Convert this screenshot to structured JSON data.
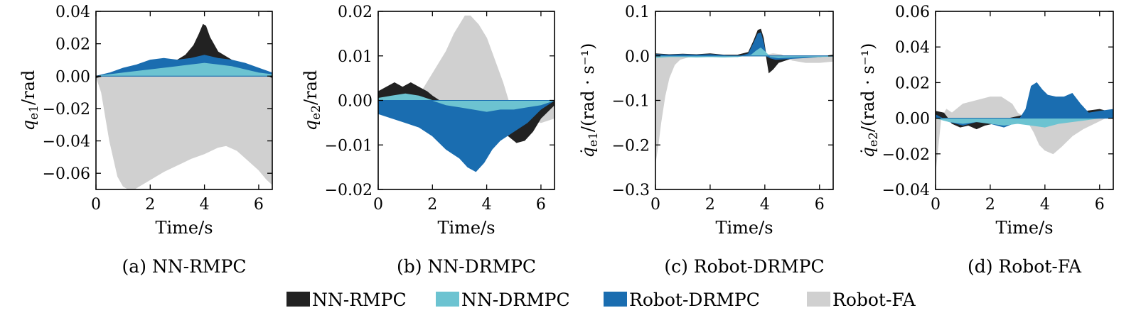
{
  "legend": [
    {
      "name": "NN-RMPC",
      "color": "#222222"
    },
    {
      "name": "NN-DRMPC",
      "color": "#6cc3d1"
    },
    {
      "name": "Robot-DRMPC",
      "color": "#1a6db0"
    },
    {
      "name": "Robot-FA",
      "color": "#d0d0d0"
    }
  ],
  "chart_data": [
    {
      "type": "area",
      "caption": "(a) NN-RMPC",
      "xlabel": "Time/s",
      "ylabel": "q_e1/rad",
      "ylabel_parts": {
        "base": "q",
        "sub": "e1",
        "tail": "/rad"
      },
      "xlim": [
        0,
        6.5
      ],
      "ylim": [
        -0.07,
        0.04
      ],
      "xticks": [
        0,
        2,
        4,
        6
      ],
      "xtick_labels": [
        "0",
        "2",
        "4",
        "6"
      ],
      "yticks": [
        0.04,
        0.02,
        0.0,
        -0.02,
        -0.04,
        -0.06
      ],
      "ytick_labels": [
        "0.04",
        "0.02",
        "0.00",
        "−0.02",
        "−0.04",
        "−0.06"
      ],
      "series": [
        {
          "name": "Robot-FA",
          "x": [
            0,
            0.2,
            0.5,
            0.8,
            1.0,
            1.3,
            1.6,
            2.0,
            2.5,
            3.0,
            3.5,
            4.0,
            4.5,
            4.8,
            5.2,
            5.6,
            6.0,
            6.3,
            6.5
          ],
          "y": [
            0.0,
            -0.01,
            -0.04,
            -0.062,
            -0.068,
            -0.071,
            -0.068,
            -0.064,
            -0.059,
            -0.055,
            -0.051,
            -0.048,
            -0.044,
            -0.043,
            -0.046,
            -0.052,
            -0.058,
            -0.064,
            -0.067
          ]
        },
        {
          "name": "NN-RMPC",
          "x": [
            0,
            0.5,
            1.0,
            1.5,
            2.0,
            2.5,
            3.0,
            3.3,
            3.6,
            3.8,
            3.95,
            4.05,
            4.2,
            4.5,
            5.0,
            5.5,
            6.0,
            6.5
          ],
          "y": [
            -0.001,
            0.001,
            0.002,
            0.004,
            0.007,
            0.009,
            0.01,
            0.013,
            0.019,
            0.026,
            0.032,
            0.031,
            0.024,
            0.015,
            0.01,
            0.007,
            0.003,
            -0.001
          ]
        },
        {
          "name": "Robot-DRMPC",
          "x": [
            0,
            0.5,
            1.0,
            1.5,
            2.0,
            2.5,
            3.0,
            3.5,
            4.0,
            4.5,
            5.0,
            5.5,
            6.0,
            6.5
          ],
          "y": [
            0.0,
            0.002,
            0.005,
            0.007,
            0.01,
            0.011,
            0.01,
            0.011,
            0.013,
            0.011,
            0.01,
            0.008,
            0.005,
            0.002
          ]
        },
        {
          "name": "NN-DRMPC",
          "x": [
            0,
            0.5,
            1.0,
            1.5,
            2.0,
            2.5,
            3.0,
            3.5,
            4.0,
            4.5,
            5.0,
            5.5,
            6.0,
            6.5
          ],
          "y": [
            0.0,
            0.001,
            0.002,
            0.003,
            0.004,
            0.005,
            0.006,
            0.007,
            0.008,
            0.007,
            0.006,
            0.004,
            0.002,
            0.001
          ]
        }
      ]
    },
    {
      "type": "area",
      "caption": "(b) NN-DRMPC",
      "xlabel": "Time/s",
      "ylabel": "q_e2/rad",
      "ylabel_parts": {
        "base": "q",
        "sub": "e2",
        "tail": "/rad"
      },
      "xlim": [
        0,
        6.5
      ],
      "ylim": [
        -0.02,
        0.02
      ],
      "xticks": [
        0,
        2,
        4,
        6
      ],
      "xtick_labels": [
        "0",
        "2",
        "4",
        "6"
      ],
      "yticks": [
        0.02,
        0.01,
        0.0,
        -0.01,
        -0.02
      ],
      "ytick_labels": [
        "0.02",
        "0.01",
        "0.00",
        "−0.01",
        "−0.02"
      ],
      "series": [
        {
          "name": "Robot-FA",
          "x": [
            0,
            1.0,
            1.6,
            2.0,
            2.5,
            2.8,
            3.0,
            3.2,
            3.4,
            3.7,
            4.0,
            4.3,
            4.6,
            4.8,
            5.0,
            5.5,
            6.0,
            6.5
          ],
          "y": [
            0.001,
            0.001,
            0.002,
            0.006,
            0.011,
            0.015,
            0.017,
            0.019,
            0.019,
            0.017,
            0.014,
            0.009,
            0.004,
            0.0,
            -0.002,
            -0.004,
            -0.005,
            -0.004
          ]
        },
        {
          "name": "NN-RMPC",
          "x": [
            0,
            0.3,
            0.6,
            0.9,
            1.2,
            1.5,
            1.8,
            2.0,
            2.5,
            3.0,
            3.5,
            4.0,
            4.5,
            4.8,
            5.1,
            5.4,
            5.7,
            6.0,
            6.5
          ],
          "y": [
            0.002,
            0.003,
            0.004,
            0.003,
            0.004,
            0.003,
            0.002,
            0.001,
            -0.001,
            -0.003,
            -0.005,
            -0.006,
            -0.007,
            -0.008,
            -0.0095,
            -0.009,
            -0.007,
            -0.004,
            -0.001
          ]
        },
        {
          "name": "Robot-DRMPC",
          "x": [
            0,
            0.5,
            1.0,
            1.5,
            2.0,
            2.5,
            3.0,
            3.3,
            3.6,
            3.9,
            4.2,
            4.5,
            5.0,
            5.5,
            6.0,
            6.5
          ],
          "y": [
            -0.003,
            -0.004,
            -0.005,
            -0.006,
            -0.008,
            -0.011,
            -0.013,
            -0.015,
            -0.016,
            -0.014,
            -0.011,
            -0.009,
            -0.007,
            -0.005,
            -0.002,
            0.0
          ]
        },
        {
          "name": "NN-DRMPC",
          "x": [
            0,
            0.5,
            1.0,
            1.5,
            2.0,
            2.5,
            3.0,
            3.5,
            4.0,
            4.5,
            5.0,
            5.5,
            6.0,
            6.5
          ],
          "y": [
            0.0005,
            0.001,
            0.0015,
            0.001,
            0.0,
            -0.001,
            -0.0015,
            -0.002,
            -0.0025,
            -0.002,
            -0.002,
            -0.0015,
            -0.001,
            0.0
          ]
        }
      ]
    },
    {
      "type": "area",
      "caption": "(c) Robot-DRMPC",
      "xlabel": "Time/s",
      "ylabel": "q̇_e1/(rad·s⁻¹)",
      "ylabel_parts": {
        "base": "q̇",
        "sub": "e1",
        "tail": "/(rad · s⁻¹)"
      },
      "xlim": [
        0,
        6.5
      ],
      "ylim": [
        -0.3,
        0.1
      ],
      "xticks": [
        0,
        2,
        4,
        6
      ],
      "xtick_labels": [
        "0",
        "2",
        "4",
        "6"
      ],
      "yticks": [
        0.1,
        0.0,
        -0.1,
        -0.2,
        -0.3
      ],
      "ytick_labels": [
        "0.1",
        "0.0",
        "−0.1",
        "−0.2",
        "−0.3"
      ],
      "series": [
        {
          "name": "Robot-FA",
          "x": [
            0,
            0.1,
            0.2,
            0.35,
            0.5,
            0.7,
            0.9,
            1.2,
            1.6,
            2.0,
            3.0,
            3.5,
            4.0,
            4.3,
            4.6,
            5.0,
            5.5,
            6.0,
            6.5
          ],
          "y": [
            -0.24,
            -0.2,
            -0.15,
            -0.09,
            -0.05,
            -0.02,
            -0.008,
            -0.003,
            0.0,
            0.0,
            0.0,
            0.0,
            0.002,
            0.005,
            0.003,
            -0.01,
            -0.015,
            -0.015,
            -0.012
          ]
        },
        {
          "name": "NN-RMPC",
          "x": [
            0,
            0.5,
            1.0,
            1.5,
            2.0,
            2.5,
            3.0,
            3.4,
            3.6,
            3.75,
            3.85,
            3.95,
            4.05,
            4.15,
            4.3,
            4.5,
            5.0,
            5.5,
            6.0,
            6.5
          ],
          "y": [
            0.005,
            0.003,
            0.004,
            0.003,
            0.005,
            0.002,
            0.002,
            0.008,
            0.035,
            0.058,
            0.06,
            0.04,
            0.0,
            -0.038,
            -0.03,
            -0.015,
            -0.005,
            -0.003,
            -0.002,
            0.002
          ]
        },
        {
          "name": "Robot-DRMPC",
          "x": [
            0,
            0.5,
            1.0,
            1.5,
            2.0,
            2.5,
            3.0,
            3.4,
            3.6,
            3.75,
            3.85,
            3.95,
            4.05,
            4.2,
            4.4,
            5.0,
            5.5,
            6.0,
            6.5
          ],
          "y": [
            0.003,
            0.002,
            0.003,
            0.002,
            0.003,
            0.001,
            -0.002,
            0.005,
            0.03,
            0.05,
            0.052,
            0.03,
            0.0,
            -0.005,
            -0.008,
            -0.006,
            -0.004,
            -0.002,
            0.001
          ]
        },
        {
          "name": "NN-DRMPC",
          "x": [
            0,
            0.5,
            1.0,
            1.5,
            2.0,
            2.5,
            3.0,
            3.5,
            3.7,
            3.85,
            4.0,
            4.2,
            4.5,
            5.0,
            5.5,
            6.0,
            6.5
          ],
          "y": [
            -0.004,
            -0.002,
            -0.002,
            -0.003,
            -0.002,
            -0.003,
            -0.002,
            0.002,
            0.012,
            0.018,
            0.01,
            -0.002,
            -0.004,
            -0.003,
            -0.002,
            -0.002,
            -0.001
          ]
        }
      ]
    },
    {
      "type": "area",
      "caption": "(d) Robot-FA",
      "xlabel": "Time/s",
      "ylabel": "q̇_e2/(rad·s⁻¹)",
      "ylabel_parts": {
        "base": "q̇",
        "sub": "e2",
        "tail": "/(rad · s⁻¹)"
      },
      "xlim": [
        0,
        6.5
      ],
      "ylim": [
        -0.04,
        0.06
      ],
      "xticks": [
        0,
        2,
        4,
        6
      ],
      "xtick_labels": [
        "0",
        "2",
        "4",
        "6"
      ],
      "yticks": [
        0.06,
        0.04,
        0.02,
        0.0,
        -0.02,
        -0.04
      ],
      "ytick_labels": [
        "0.06",
        "0.04",
        "0.02",
        "0.00",
        "−0.02",
        "−0.04"
      ],
      "series": [
        {
          "name": "Robot-FA",
          "x": [
            0,
            0.1,
            0.2,
            0.4,
            0.6,
            1.0,
            1.5,
            2.0,
            2.4,
            2.8,
            3.0,
            3.3,
            3.6,
            3.8,
            4.0,
            4.3,
            4.6,
            5.0,
            5.4,
            5.8,
            6.2,
            6.5
          ],
          "y": [
            -0.03,
            -0.015,
            0.0,
            0.005,
            0.003,
            0.008,
            0.01,
            0.012,
            0.012,
            0.008,
            0.003,
            0.0,
            -0.008,
            -0.015,
            -0.018,
            -0.02,
            -0.016,
            -0.01,
            -0.006,
            -0.003,
            0.0,
            0.001
          ]
        },
        {
          "name": "NN-RMPC",
          "x": [
            0,
            0.3,
            0.6,
            0.9,
            1.2,
            1.5,
            1.8,
            2.1,
            2.4,
            2.7,
            3.0,
            3.3,
            3.6,
            4.0,
            4.5,
            5.0,
            5.5,
            6.0,
            6.5
          ],
          "y": [
            0.004,
            0.003,
            -0.003,
            -0.005,
            -0.004,
            -0.006,
            -0.004,
            -0.003,
            -0.002,
            0.0,
            0.001,
            0.002,
            0.003,
            0.003,
            0.002,
            0.002,
            0.004,
            0.005,
            0.003
          ]
        },
        {
          "name": "Robot-DRMPC",
          "x": [
            0,
            0.5,
            1.0,
            1.5,
            2.0,
            2.5,
            3.0,
            3.3,
            3.5,
            3.7,
            3.9,
            4.1,
            4.4,
            4.7,
            5.0,
            5.3,
            5.6,
            6.0,
            6.5
          ],
          "y": [
            0.002,
            -0.002,
            -0.004,
            -0.002,
            -0.003,
            -0.005,
            -0.002,
            0.005,
            0.018,
            0.02,
            0.016,
            0.013,
            0.012,
            0.012,
            0.014,
            0.008,
            0.003,
            0.004,
            0.005
          ]
        },
        {
          "name": "NN-DRMPC",
          "x": [
            0,
            0.5,
            1.0,
            1.5,
            2.0,
            2.5,
            3.0,
            3.5,
            4.0,
            4.5,
            5.0,
            5.5,
            6.0,
            6.5
          ],
          "y": [
            0.0,
            -0.002,
            -0.003,
            -0.002,
            -0.003,
            -0.004,
            -0.003,
            -0.004,
            -0.005,
            -0.003,
            -0.002,
            -0.001,
            0.0,
            0.0
          ]
        }
      ]
    }
  ]
}
